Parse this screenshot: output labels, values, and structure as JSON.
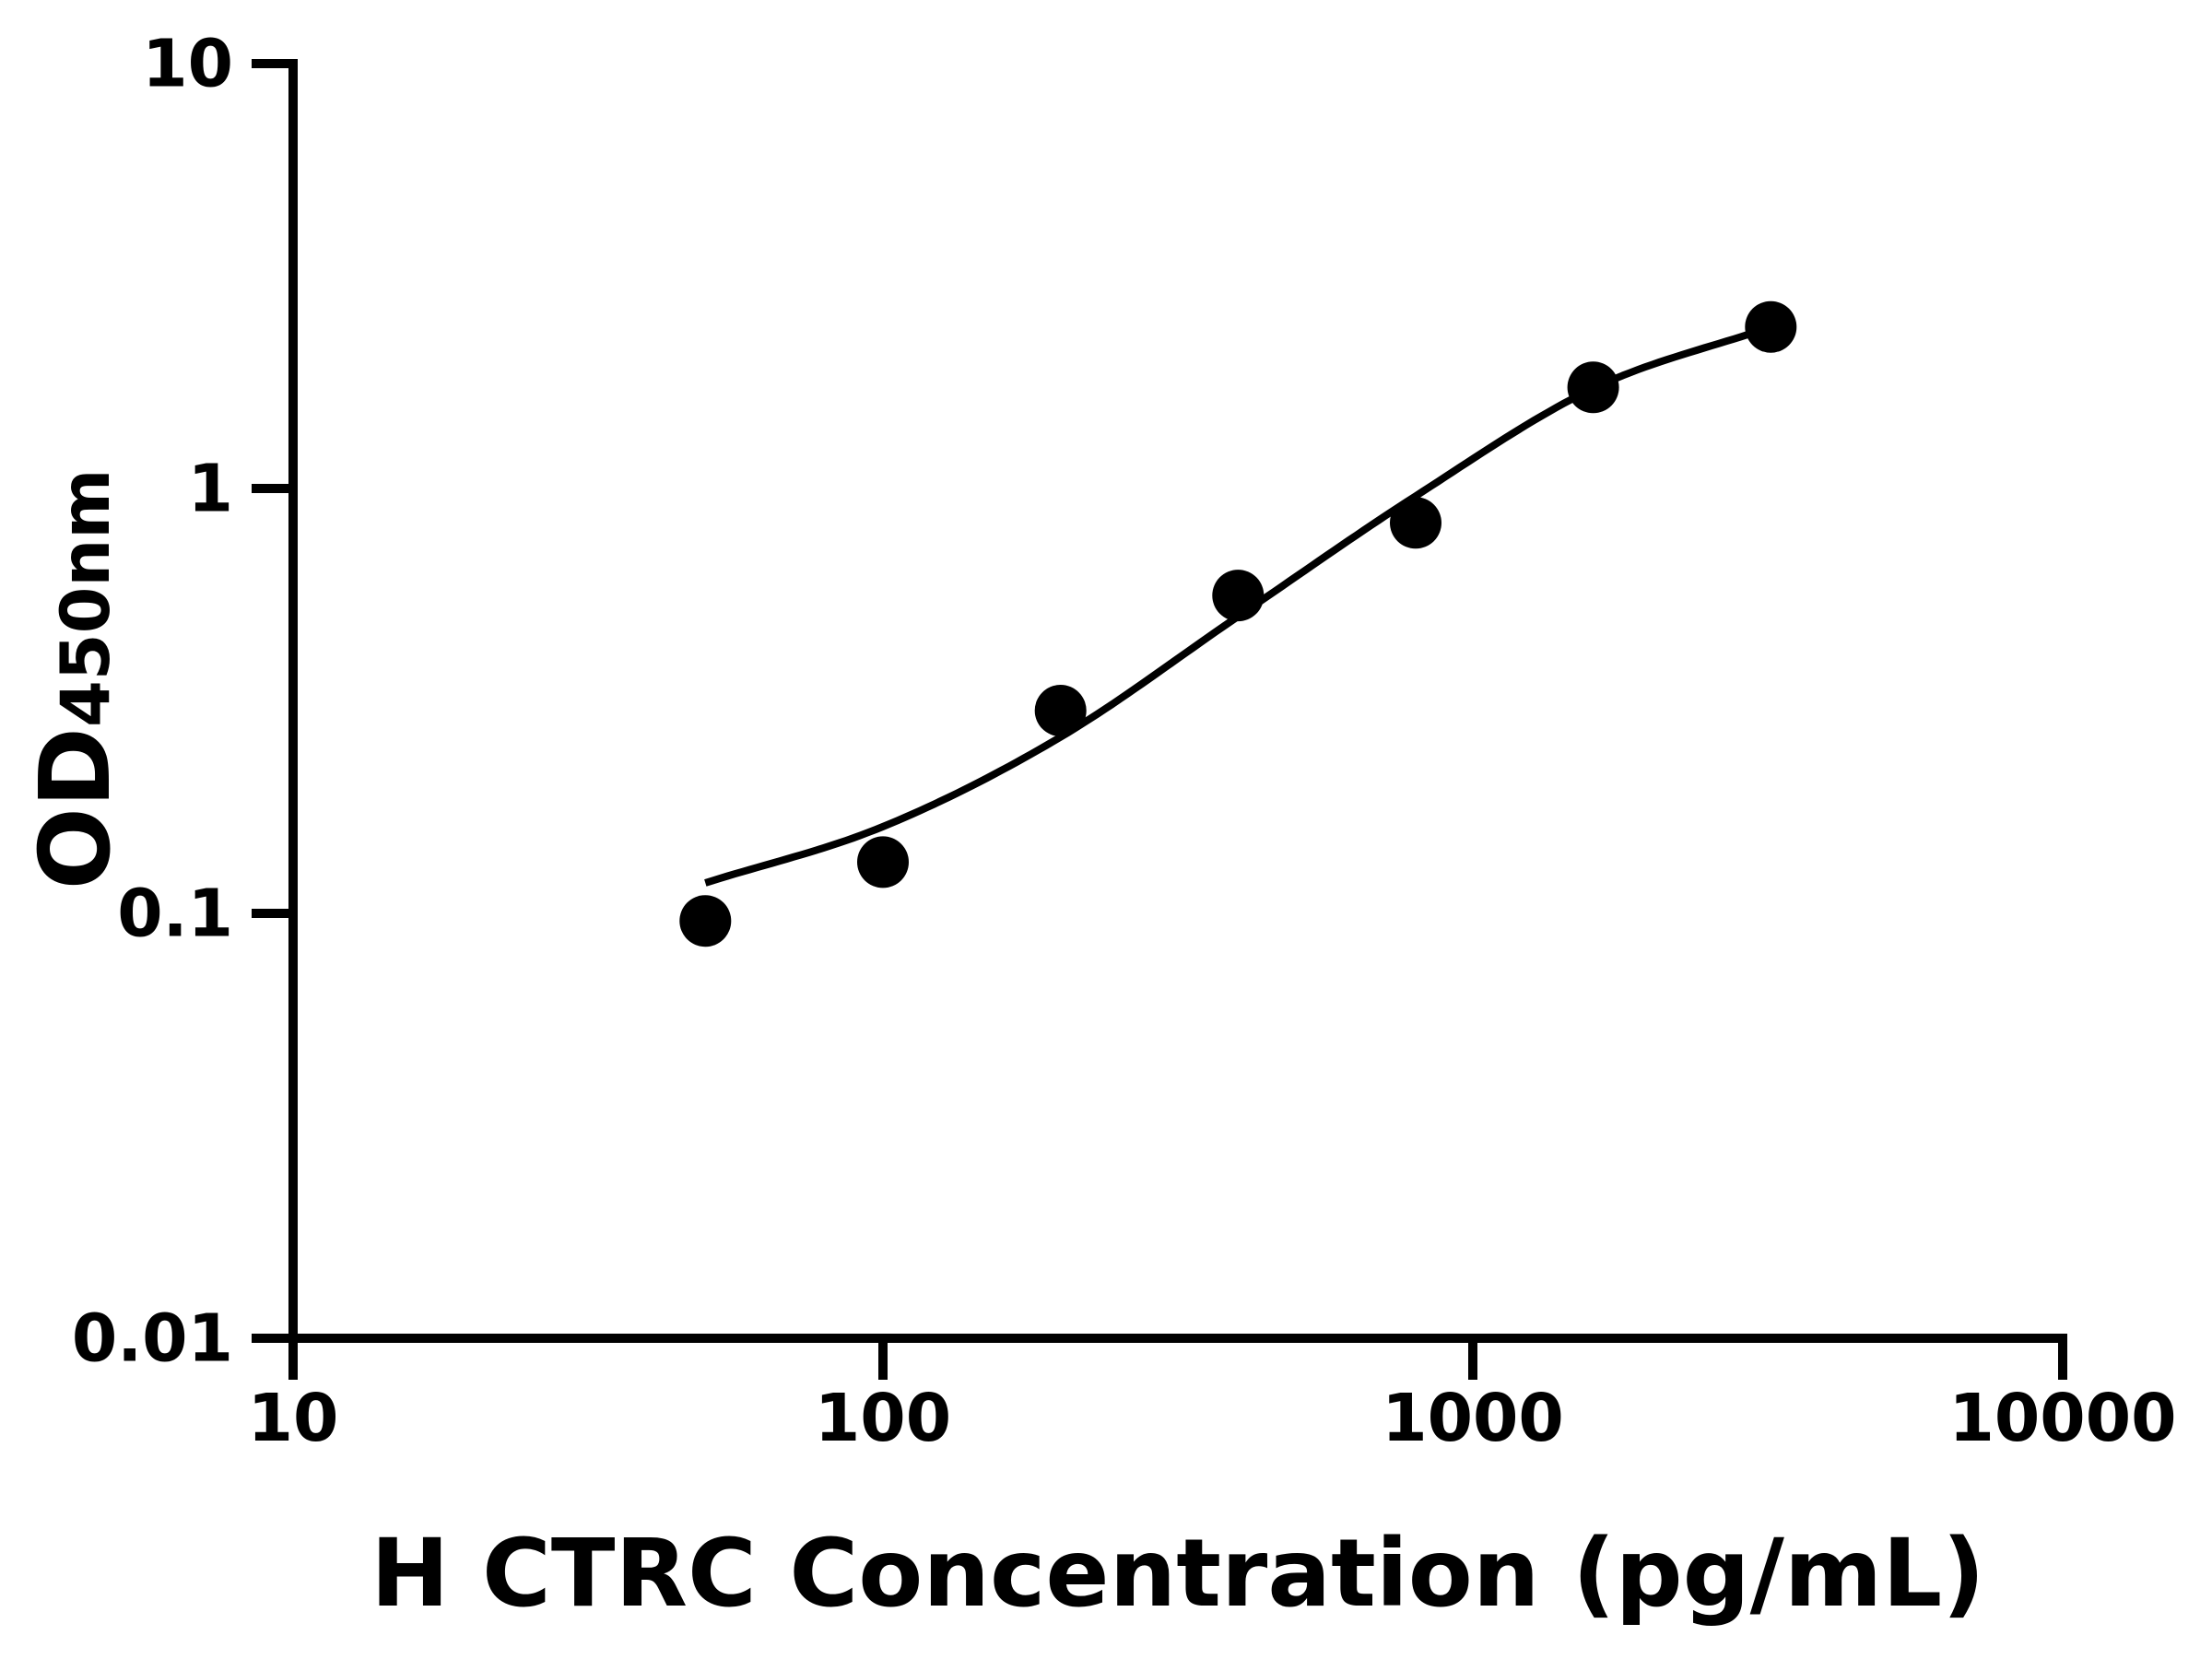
{
  "figure": {
    "background_color": "#ffffff",
    "ink_color": "#000000"
  },
  "chart_data": {
    "type": "scatter",
    "title": "",
    "xlabel": "H CTRC Concentration (pg/mL)",
    "ylabel": "OD450nm",
    "ylabel_main": "OD",
    "ylabel_sub": "450nm",
    "x_scale": "log10",
    "y_scale": "log10",
    "xlim": [
      10,
      10000
    ],
    "ylim": [
      0.01,
      10
    ],
    "grid": false,
    "legend": "none",
    "x_ticks": {
      "values": [
        10,
        100,
        1000,
        10000
      ],
      "labels": [
        "10",
        "100",
        "1000",
        "10000"
      ]
    },
    "y_ticks": {
      "values": [
        0.01,
        0.1,
        1,
        10
      ],
      "labels": [
        "0.01",
        "0.1",
        "1",
        "10"
      ]
    },
    "series": [
      {
        "name": "standards",
        "marker": "filled-circle",
        "color": "#000000",
        "x": [
          50,
          100,
          200,
          400,
          800,
          1600,
          3200
        ],
        "y": [
          0.096,
          0.132,
          0.3,
          0.56,
          0.83,
          1.73,
          2.4
        ]
      }
    ],
    "fit_curve": {
      "name": "fit-curve",
      "color": "#000000",
      "x": [
        50,
        100,
        200,
        400,
        800,
        1600,
        3200
      ],
      "y": [
        0.118,
        0.16,
        0.26,
        0.5,
        0.96,
        1.72,
        2.4
      ]
    }
  }
}
